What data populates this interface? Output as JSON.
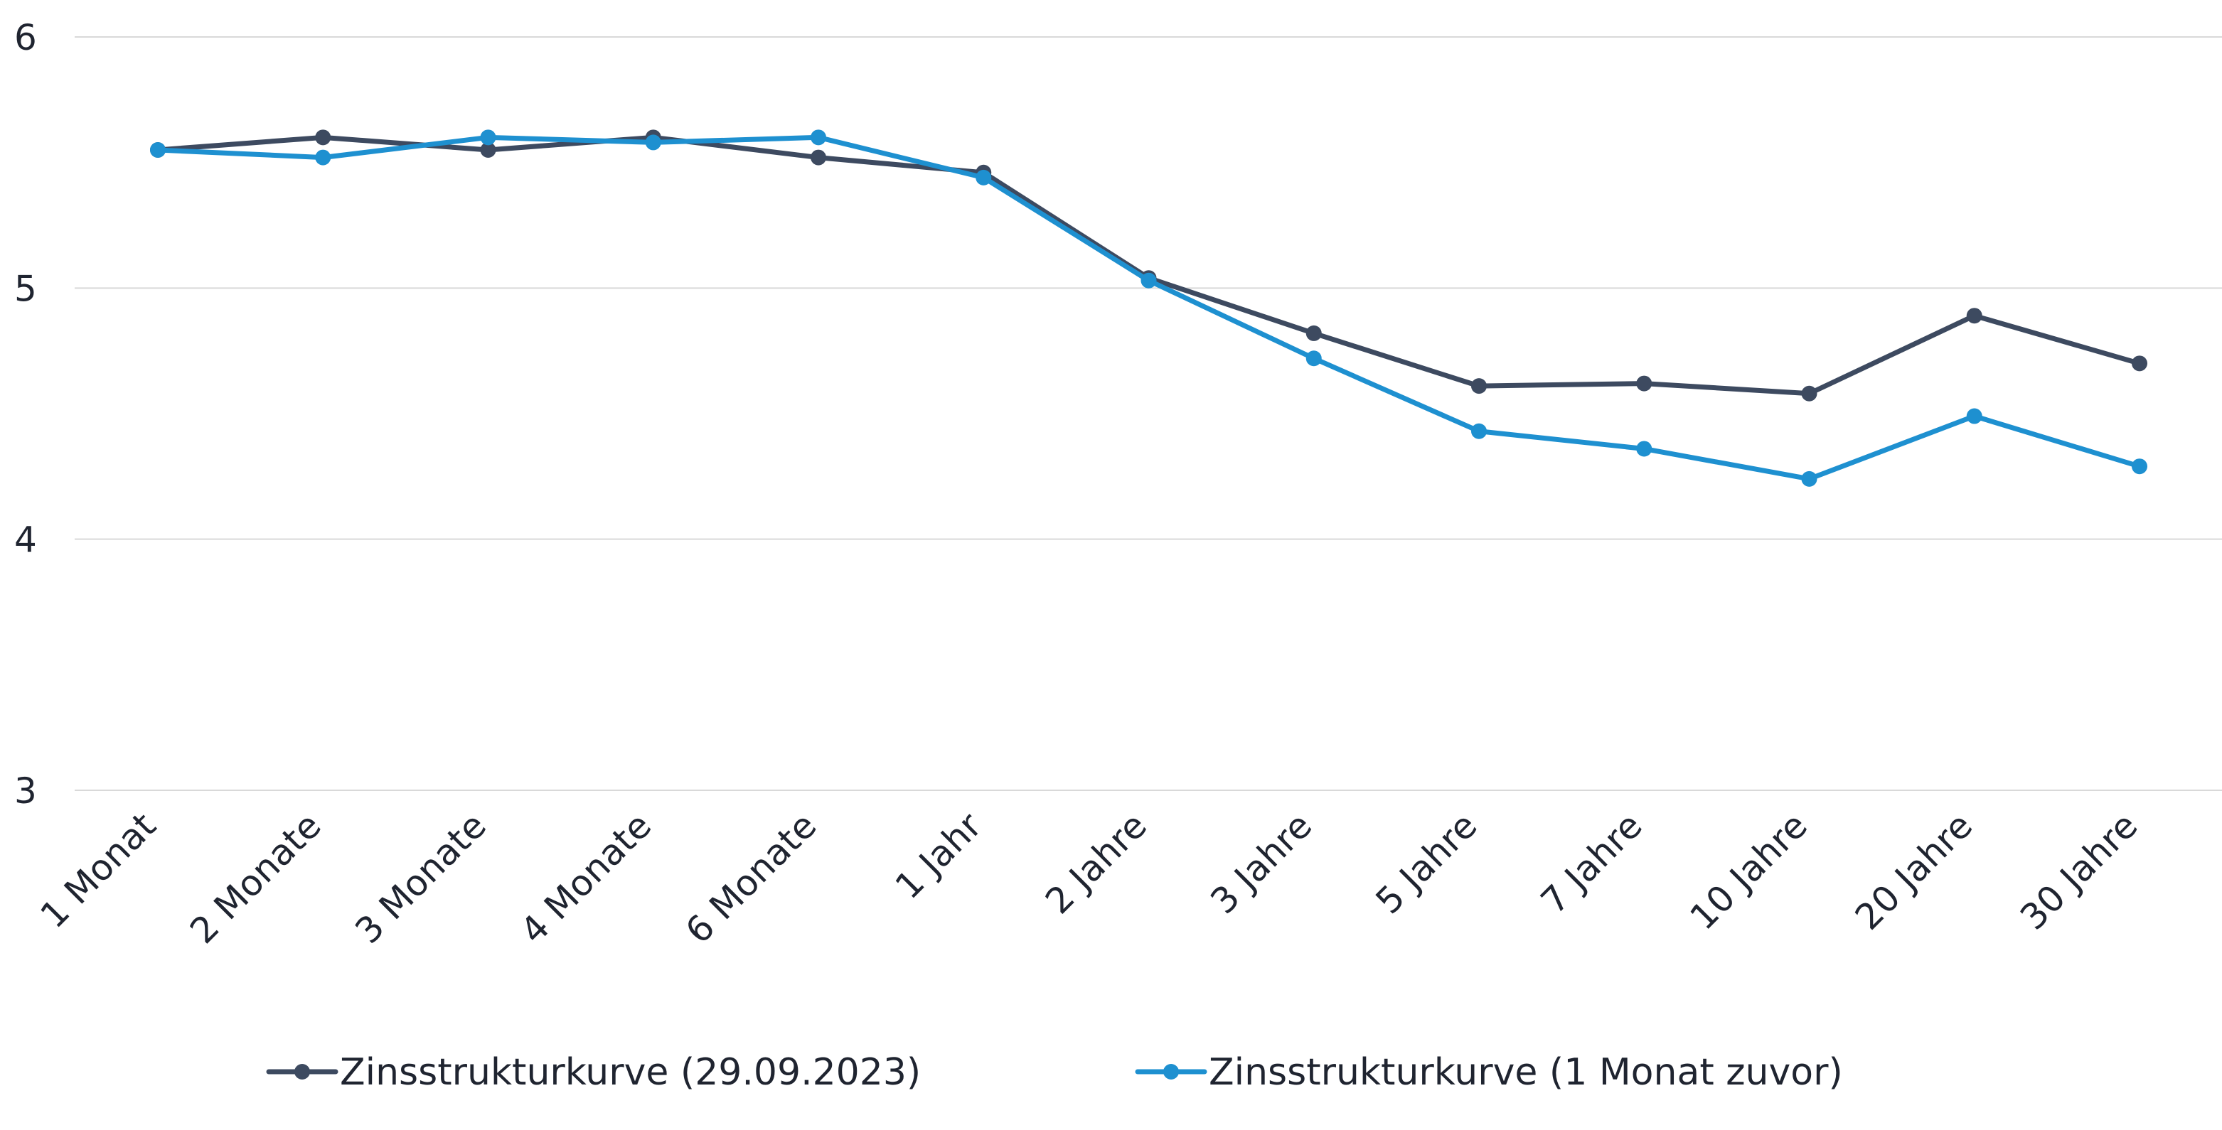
{
  "chart_data": {
    "type": "line",
    "categories": [
      "1 Monat",
      "2 Monate",
      "3 Monate",
      "4 Monate",
      "6 Monate",
      "1 Jahr",
      "2 Jahre",
      "3 Jahre",
      "5 Jahre",
      "7 Jahre",
      "10 Jahre",
      "20 Jahre",
      "30 Jahre"
    ],
    "series": [
      {
        "name": "Zinsstrukturkurve (29.09.2023)",
        "color": "#3d4a60",
        "values": [
          5.55,
          5.6,
          5.55,
          5.6,
          5.52,
          5.46,
          5.04,
          4.82,
          4.61,
          4.62,
          4.58,
          4.89,
          4.7
        ]
      },
      {
        "name": "Zinsstrukturkurve (1 Monat zuvor)",
        "color": "#1e90d0",
        "values": [
          5.55,
          5.52,
          5.6,
          5.58,
          5.6,
          5.44,
          5.03,
          4.72,
          4.43,
          4.36,
          4.24,
          4.49,
          4.29
        ]
      }
    ],
    "ylim": [
      3,
      6
    ],
    "yticks": [
      "3",
      "4",
      "5",
      "6"
    ],
    "grid": true,
    "legend": "bottom"
  }
}
